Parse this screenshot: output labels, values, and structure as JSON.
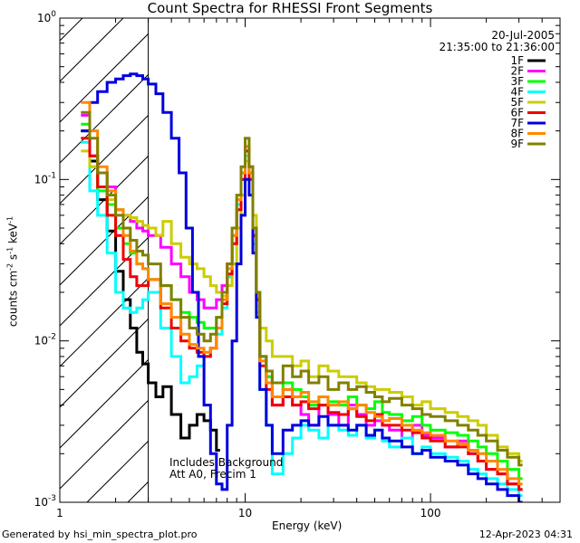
{
  "chart_data": {
    "type": "line",
    "title": "Count Spectra for RHESSI Front Segments",
    "xlabel": "Energy (keV)",
    "ylabel": "counts cm^-2 s^-1 keV^-1",
    "ylabel_parts": [
      "counts cm",
      "-2",
      " s",
      "-1",
      " keV",
      "-1"
    ],
    "x_scale": "log",
    "y_scale": "log",
    "xlim": [
      1,
      500
    ],
    "ylim": [
      0.001,
      1
    ],
    "x_ticks": [
      {
        "value": 1,
        "label": "1"
      },
      {
        "value": 10,
        "label": "10"
      },
      {
        "value": 100,
        "label": "100"
      }
    ],
    "y_ticks": [
      {
        "value": 1,
        "label": "10",
        "exp": "0"
      },
      {
        "value": 0.1,
        "label": "10",
        "exp": "-1"
      },
      {
        "value": 0.01,
        "label": "10",
        "exp": "-2"
      },
      {
        "value": 0.001,
        "label": "10",
        "exp": "-3"
      }
    ],
    "attenuator_region_max_keV": 3,
    "date": "20-Jul-2005",
    "time_range": "21:35:00 to 21:36:00",
    "annotation_lines": [
      "Includes Background",
      "Att A0, Frecim 1"
    ],
    "series": [
      {
        "name": "1F",
        "color": "#000000",
        "x": [
          1.3,
          1.45,
          1.6,
          1.8,
          2.0,
          2.2,
          2.4,
          2.6,
          2.8,
          3.0,
          3.3,
          3.6,
          4.0,
          4.5,
          5.0,
          5.5,
          6.0,
          6.5,
          7.0
        ],
        "values": [
          0.2,
          0.13,
          0.075,
          0.048,
          0.027,
          0.018,
          0.012,
          0.0085,
          0.0072,
          0.0055,
          0.0045,
          0.0052,
          0.0035,
          0.0025,
          0.003,
          0.0035,
          0.0032,
          0.0028,
          0.0021
        ]
      },
      {
        "name": "2F",
        "color": "#ff00ff",
        "x": [
          1.3,
          1.45,
          1.6,
          1.8,
          2.0,
          2.2,
          2.4,
          2.6,
          2.8,
          3.0,
          3.5,
          4.0,
          4.5,
          5.0,
          5.5,
          6.0,
          6.5,
          7.0,
          7.5,
          8.0,
          8.5,
          9.0,
          9.5,
          10.0,
          10.5,
          11.0,
          11.5,
          12.0,
          13.0,
          14.0,
          16,
          18,
          20,
          22,
          25,
          28,
          32,
          36,
          40,
          45,
          50,
          55,
          60,
          70,
          80,
          90,
          100,
          120,
          140,
          160,
          180,
          200,
          230,
          260,
          300
        ],
        "values": [
          0.25,
          0.14,
          0.11,
          0.09,
          0.065,
          0.06,
          0.055,
          0.05,
          0.048,
          0.045,
          0.038,
          0.03,
          0.025,
          0.02,
          0.018,
          0.016,
          0.016,
          0.018,
          0.022,
          0.03,
          0.045,
          0.07,
          0.1,
          0.16,
          0.12,
          0.05,
          0.02,
          0.008,
          0.006,
          0.004,
          0.005,
          0.004,
          0.0035,
          0.003,
          0.004,
          0.0035,
          0.003,
          0.004,
          0.0035,
          0.003,
          0.0032,
          0.003,
          0.0028,
          0.0025,
          0.003,
          0.0026,
          0.0025,
          0.0022,
          0.0024,
          0.002,
          0.0018,
          0.0016,
          0.0015,
          0.0013,
          0.0012
        ]
      },
      {
        "name": "3F",
        "color": "#00ff00",
        "x": [
          1.3,
          1.45,
          1.6,
          1.8,
          2.0,
          2.2,
          2.4,
          2.6,
          2.8,
          3.0,
          3.5,
          4.0,
          4.5,
          5.0,
          5.5,
          6.0,
          6.5,
          7.0,
          7.5,
          8.0,
          8.5,
          9.0,
          9.5,
          10.0,
          10.5,
          11.0,
          11.5,
          12.0,
          13.0,
          14.0,
          16,
          18,
          20,
          22,
          25,
          28,
          32,
          36,
          40,
          45,
          50,
          55,
          60,
          70,
          80,
          90,
          100,
          120,
          140,
          160,
          180,
          200,
          230,
          260,
          300
        ],
        "values": [
          0.22,
          0.12,
          0.085,
          0.07,
          0.05,
          0.04,
          0.035,
          0.03,
          0.028,
          0.024,
          0.022,
          0.018,
          0.015,
          0.014,
          0.013,
          0.012,
          0.012,
          0.014,
          0.018,
          0.025,
          0.04,
          0.065,
          0.1,
          0.15,
          0.11,
          0.045,
          0.02,
          0.008,
          0.006,
          0.0045,
          0.0055,
          0.005,
          0.0045,
          0.004,
          0.0045,
          0.0042,
          0.004,
          0.0045,
          0.004,
          0.0038,
          0.0042,
          0.0036,
          0.0035,
          0.0032,
          0.0034,
          0.003,
          0.0028,
          0.0027,
          0.0026,
          0.0024,
          0.0022,
          0.002,
          0.0018,
          0.0016,
          0.0014
        ]
      },
      {
        "name": "4F",
        "color": "#00ffff",
        "x": [
          1.3,
          1.45,
          1.6,
          1.8,
          2.0,
          2.2,
          2.4,
          2.6,
          2.8,
          3.0,
          3.5,
          4.0,
          4.5,
          5.0,
          5.5,
          6.0,
          6.5,
          7.0,
          7.5,
          8.0,
          8.5,
          9.0,
          9.5,
          10.0,
          10.5,
          11.0,
          11.5,
          12.0,
          13.0,
          14.0,
          16,
          18,
          20,
          22,
          25,
          28,
          32,
          36,
          40,
          45,
          50,
          55,
          60,
          70,
          80,
          90,
          100,
          120,
          140,
          160,
          180,
          200,
          230,
          260,
          300
        ],
        "values": [
          0.17,
          0.085,
          0.06,
          0.035,
          0.02,
          0.016,
          0.015,
          0.016,
          0.018,
          0.02,
          0.012,
          0.008,
          0.0055,
          0.006,
          0.007,
          0.008,
          0.009,
          0.011,
          0.016,
          0.025,
          0.04,
          0.07,
          0.1,
          0.14,
          0.1,
          0.04,
          0.015,
          0.005,
          0.003,
          0.0015,
          0.002,
          0.0025,
          0.003,
          0.0028,
          0.0025,
          0.003,
          0.0028,
          0.0026,
          0.003,
          0.0025,
          0.0028,
          0.0024,
          0.0022,
          0.0025,
          0.002,
          0.0022,
          0.002,
          0.0019,
          0.0018,
          0.0016,
          0.0015,
          0.0014,
          0.0013,
          0.0012,
          0.0011
        ]
      },
      {
        "name": "5F",
        "color": "#cccc00",
        "x": [
          1.3,
          1.45,
          1.6,
          1.8,
          2.0,
          2.2,
          2.4,
          2.6,
          2.8,
          3.0,
          3.3,
          3.6,
          4.0,
          4.5,
          5.0,
          5.5,
          6.0,
          6.5,
          7.0,
          7.5,
          8.0,
          8.5,
          9.0,
          9.5,
          10.0,
          10.5,
          11.0,
          11.5,
          12.0,
          13.0,
          14.0,
          16,
          18,
          20,
          22,
          25,
          28,
          32,
          36,
          40,
          45,
          50,
          55,
          60,
          70,
          80,
          90,
          100,
          120,
          140,
          160,
          180,
          200,
          230,
          260,
          300
        ],
        "values": [
          0.15,
          0.12,
          0.09,
          0.075,
          0.065,
          0.06,
          0.058,
          0.055,
          0.052,
          0.05,
          0.045,
          0.055,
          0.04,
          0.033,
          0.03,
          0.028,
          0.025,
          0.022,
          0.02,
          0.019,
          0.022,
          0.03,
          0.05,
          0.08,
          0.13,
          0.1,
          0.06,
          0.02,
          0.012,
          0.01,
          0.008,
          0.008,
          0.007,
          0.0075,
          0.006,
          0.007,
          0.0065,
          0.006,
          0.006,
          0.0055,
          0.0052,
          0.005,
          0.005,
          0.0048,
          0.0045,
          0.004,
          0.0042,
          0.0038,
          0.0036,
          0.0034,
          0.0032,
          0.003,
          0.0026,
          0.0022,
          0.002,
          0.0018
        ]
      },
      {
        "name": "6F",
        "color": "#ee0000",
        "x": [
          1.3,
          1.45,
          1.6,
          1.8,
          2.0,
          2.2,
          2.4,
          2.6,
          2.8,
          3.0,
          3.5,
          4.0,
          4.5,
          5.0,
          5.5,
          6.0,
          6.5,
          7.0,
          7.5,
          8.0,
          8.5,
          9.0,
          9.5,
          10.0,
          10.5,
          11.0,
          11.5,
          12.0,
          13.0,
          14.0,
          16,
          18,
          20,
          22,
          25,
          28,
          32,
          36,
          40,
          45,
          50,
          55,
          60,
          70,
          80,
          90,
          100,
          120,
          140,
          160,
          180,
          200,
          230,
          260,
          300
        ],
        "values": [
          0.18,
          0.14,
          0.09,
          0.06,
          0.045,
          0.032,
          0.025,
          0.022,
          0.022,
          0.024,
          0.016,
          0.012,
          0.01,
          0.009,
          0.0085,
          0.008,
          0.009,
          0.012,
          0.017,
          0.026,
          0.04,
          0.065,
          0.1,
          0.15,
          0.1,
          0.045,
          0.018,
          0.007,
          0.005,
          0.004,
          0.0045,
          0.004,
          0.0042,
          0.0038,
          0.004,
          0.0036,
          0.0035,
          0.0038,
          0.0034,
          0.0032,
          0.0035,
          0.003,
          0.003,
          0.0028,
          0.0027,
          0.0025,
          0.0024,
          0.0022,
          0.0022,
          0.002,
          0.0018,
          0.0016,
          0.0015,
          0.0013,
          0.0012
        ]
      },
      {
        "name": "7F",
        "color": "#0000dd",
        "x": [
          1.3,
          1.45,
          1.6,
          1.8,
          2.0,
          2.2,
          2.4,
          2.6,
          2.8,
          3.0,
          3.3,
          3.6,
          4.0,
          4.4,
          4.8,
          5.2,
          5.6,
          6.0,
          6.5,
          7.0,
          7.5,
          8.0,
          8.5,
          9.0,
          9.5,
          10.0,
          10.5,
          11.0,
          11.5,
          12.0,
          13.0,
          14.0,
          16,
          18,
          20,
          22,
          25,
          28,
          32,
          36,
          40,
          45,
          50,
          55,
          60,
          70,
          80,
          90,
          100,
          120,
          140,
          160,
          180,
          200,
          230,
          260,
          300
        ],
        "values": [
          0.2,
          0.3,
          0.35,
          0.4,
          0.42,
          0.44,
          0.45,
          0.44,
          0.42,
          0.39,
          0.34,
          0.26,
          0.18,
          0.11,
          0.05,
          0.02,
          0.008,
          0.004,
          0.002,
          0.0013,
          0.0012,
          0.003,
          0.01,
          0.03,
          0.06,
          0.1,
          0.08,
          0.035,
          0.014,
          0.005,
          0.003,
          0.002,
          0.0028,
          0.003,
          0.0032,
          0.003,
          0.0034,
          0.003,
          0.003,
          0.0028,
          0.003,
          0.0026,
          0.0028,
          0.0025,
          0.0024,
          0.0022,
          0.002,
          0.0021,
          0.0019,
          0.0018,
          0.0017,
          0.0015,
          0.0014,
          0.0013,
          0.0012,
          0.0011,
          0.001
        ]
      },
      {
        "name": "8F",
        "color": "#ff8800",
        "x": [
          1.3,
          1.45,
          1.6,
          1.8,
          2.0,
          2.2,
          2.4,
          2.6,
          2.8,
          3.0,
          3.5,
          4.0,
          4.5,
          5.0,
          5.5,
          6.0,
          6.5,
          7.0,
          7.5,
          8.0,
          8.5,
          9.0,
          9.5,
          10.0,
          10.5,
          11.0,
          11.5,
          12.0,
          13.0,
          14.0,
          16,
          18,
          20,
          22,
          25,
          28,
          32,
          36,
          40,
          45,
          50,
          55,
          60,
          70,
          80,
          90,
          100,
          120,
          140,
          160,
          180,
          200,
          230,
          260,
          300
        ],
        "values": [
          0.3,
          0.2,
          0.12,
          0.085,
          0.065,
          0.045,
          0.036,
          0.03,
          0.028,
          0.024,
          0.017,
          0.014,
          0.011,
          0.0095,
          0.009,
          0.0085,
          0.009,
          0.012,
          0.018,
          0.028,
          0.045,
          0.075,
          0.11,
          0.16,
          0.11,
          0.05,
          0.02,
          0.0075,
          0.0055,
          0.0045,
          0.005,
          0.0045,
          0.0048,
          0.0042,
          0.0045,
          0.004,
          0.0042,
          0.0038,
          0.004,
          0.0036,
          0.0034,
          0.0032,
          0.0033,
          0.003,
          0.0028,
          0.0027,
          0.0026,
          0.0024,
          0.0023,
          0.0021,
          0.002,
          0.0018,
          0.0016,
          0.0014,
          0.0013
        ]
      },
      {
        "name": "9F",
        "color": "#808000",
        "x": [
          1.3,
          1.45,
          1.6,
          1.8,
          2.0,
          2.2,
          2.4,
          2.6,
          2.8,
          3.0,
          3.5,
          4.0,
          4.5,
          5.0,
          5.5,
          6.0,
          6.5,
          7.0,
          7.5,
          8.0,
          8.5,
          9.0,
          9.5,
          10.0,
          10.5,
          11.0,
          11.5,
          12.0,
          13.0,
          14.0,
          16,
          18,
          20,
          22,
          25,
          28,
          32,
          36,
          40,
          45,
          50,
          55,
          60,
          70,
          80,
          90,
          100,
          120,
          140,
          160,
          180,
          200,
          230,
          260,
          300
        ],
        "values": [
          0.26,
          0.18,
          0.11,
          0.08,
          0.06,
          0.05,
          0.042,
          0.036,
          0.034,
          0.03,
          0.022,
          0.018,
          0.014,
          0.012,
          0.011,
          0.01,
          0.011,
          0.014,
          0.02,
          0.03,
          0.05,
          0.08,
          0.12,
          0.18,
          0.12,
          0.05,
          0.02,
          0.008,
          0.0065,
          0.0055,
          0.007,
          0.006,
          0.0065,
          0.0055,
          0.006,
          0.005,
          0.0055,
          0.005,
          0.0052,
          0.0048,
          0.0045,
          0.0042,
          0.0044,
          0.004,
          0.0038,
          0.0035,
          0.0034,
          0.0032,
          0.003,
          0.0028,
          0.0026,
          0.0024,
          0.0021,
          0.0019,
          0.0017
        ]
      }
    ]
  },
  "footer": {
    "generated_by": "Generated by hsi_min_spectra_plot.pro",
    "timestamp": "12-Apr-2023 04:31"
  }
}
